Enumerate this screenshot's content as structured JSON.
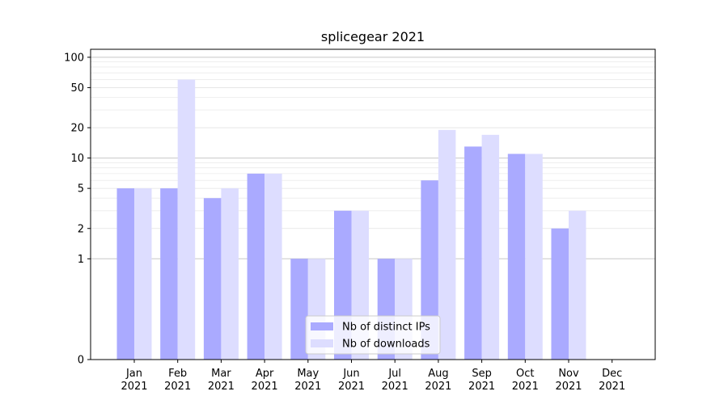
{
  "chart_data": {
    "type": "bar",
    "title": "splicegear 2021",
    "xlabel": "",
    "ylabel": "",
    "yscale": "symlog",
    "ylim": [
      0,
      120
    ],
    "yticks": [
      0,
      1,
      2,
      5,
      10,
      20,
      50,
      100
    ],
    "ytick_labels": [
      "0",
      "1",
      "2",
      "5",
      "10",
      "20",
      "50",
      "100"
    ],
    "categories": [
      [
        "Jan",
        "2021"
      ],
      [
        "Feb",
        "2021"
      ],
      [
        "Mar",
        "2021"
      ],
      [
        "Apr",
        "2021"
      ],
      [
        "May",
        "2021"
      ],
      [
        "Jun",
        "2021"
      ],
      [
        "Jul",
        "2021"
      ],
      [
        "Aug",
        "2021"
      ],
      [
        "Sep",
        "2021"
      ],
      [
        "Oct",
        "2021"
      ],
      [
        "Nov",
        "2021"
      ],
      [
        "Dec",
        "2021"
      ]
    ],
    "series": [
      {
        "name": "Nb of distinct IPs",
        "color": "#aaaaff",
        "values": [
          5,
          5,
          4,
          7,
          1,
          3,
          1,
          6,
          13,
          11,
          2,
          0
        ]
      },
      {
        "name": "Nb of downloads",
        "color": "#ddddff",
        "values": [
          5,
          60,
          5,
          7,
          1,
          3,
          1,
          19,
          17,
          11,
          3,
          0
        ]
      }
    ],
    "grid": true,
    "legend_position": "bottom-center"
  }
}
